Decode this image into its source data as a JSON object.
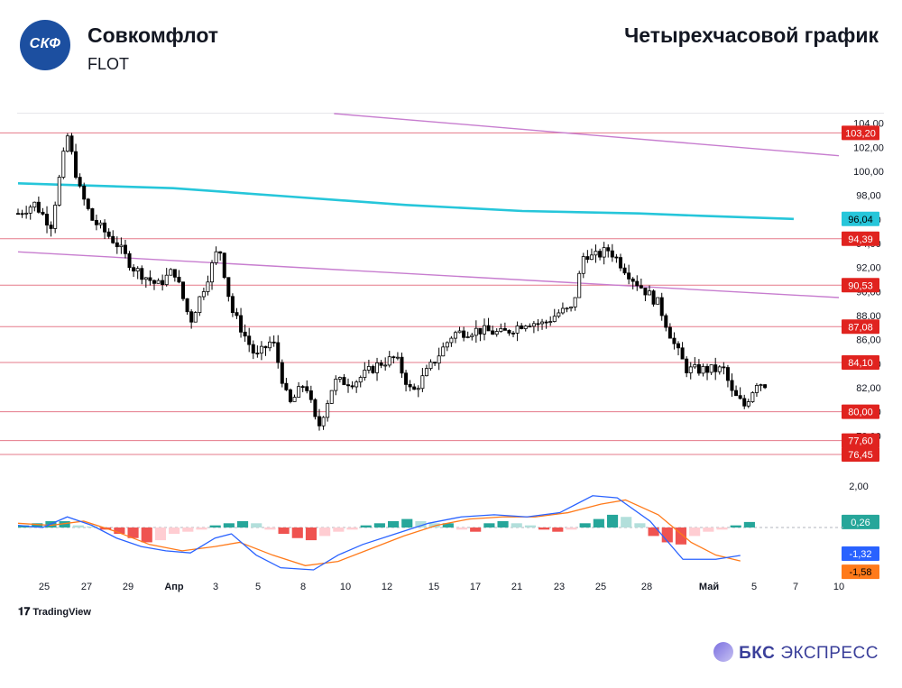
{
  "header": {
    "company_name": "Совкомфлот",
    "ticker": "FLOT",
    "logo_text": "СКФ",
    "chart_title": "Четырехчасовой график"
  },
  "footer": {
    "tradingview_label": "TradingView",
    "brand_name": "БКС",
    "brand_suffix": "ЭКСПРЕСС"
  },
  "colors": {
    "up": "#000000",
    "down": "#000000",
    "level_line": "#e57a8a",
    "level_label_bg": "#e0231f",
    "ma_line": "#26c6da",
    "trend_line": "#c77dcf",
    "macd_line": "#2962ff",
    "signal_line": "#ff7a1a",
    "hist_pos_strong": "#26a69a",
    "hist_pos_weak": "#b2dfdb",
    "hist_neg_strong": "#ef5350",
    "hist_neg_weak": "#ffcdd2"
  },
  "chart_data": {
    "type": "candlestick",
    "title": "Четырехчасовой график",
    "price_axis": {
      "min": 74.5,
      "max": 104.8,
      "ticks": [
        "104,00",
        "102,00",
        "100,00",
        "98,00",
        "96,00",
        "94,00",
        "92,00",
        "90,00",
        "88,00",
        "86,00",
        "84,00",
        "82,00",
        "80,00",
        "78,00"
      ]
    },
    "x_axis_labels": [
      "25",
      "27",
      "29",
      "Апр",
      "3",
      "5",
      "8",
      "10",
      "12",
      "15",
      "17",
      "21",
      "23",
      "25",
      "28",
      "Май",
      "5",
      "7",
      "10"
    ],
    "levels": [
      {
        "value": 103.2,
        "label": "103,20"
      },
      {
        "value": 94.39,
        "label": "94,39"
      },
      {
        "value": 90.53,
        "label": "90,53"
      },
      {
        "value": 87.08,
        "label": "87,08"
      },
      {
        "value": 84.1,
        "label": "84,10"
      },
      {
        "value": 80.0,
        "label": "80,00"
      },
      {
        "value": 77.6,
        "label": "77,60"
      },
      {
        "value": 76.45,
        "label": "76,45"
      }
    ],
    "moving_average": {
      "current_label": "96,04",
      "points": [
        [
          0,
          99.0
        ],
        [
          0.05,
          98.9
        ],
        [
          0.2,
          98.6
        ],
        [
          0.35,
          97.9
        ],
        [
          0.5,
          97.2
        ],
        [
          0.65,
          96.7
        ],
        [
          0.8,
          96.5
        ],
        [
          0.88,
          96.3
        ],
        [
          1.0,
          96.04
        ]
      ]
    },
    "trend_lines": [
      {
        "from": [
          0.385,
          104.8
        ],
        "to": [
          1.0,
          101.3
        ]
      },
      {
        "from": [
          0.0,
          93.3
        ],
        "to": [
          1.0,
          89.5
        ]
      }
    ],
    "anchors": [
      [
        0,
        96.5
      ],
      [
        0.02,
        97.3
      ],
      [
        0.04,
        95.5
      ],
      [
        0.06,
        103.0
      ],
      [
        0.075,
        98.5
      ],
      [
        0.09,
        96.0
      ],
      [
        0.12,
        94.0
      ],
      [
        0.14,
        92.0
      ],
      [
        0.17,
        90.5
      ],
      [
        0.19,
        91.8
      ],
      [
        0.21,
        87.5
      ],
      [
        0.23,
        91.0
      ],
      [
        0.245,
        93.8
      ],
      [
        0.26,
        88.5
      ],
      [
        0.29,
        84.5
      ],
      [
        0.31,
        86.0
      ],
      [
        0.33,
        80.5
      ],
      [
        0.35,
        82.5
      ],
      [
        0.365,
        78.5
      ],
      [
        0.385,
        82.5
      ],
      [
        0.41,
        82.5
      ],
      [
        0.44,
        84.0
      ],
      [
        0.46,
        84.5
      ],
      [
        0.48,
        81.5
      ],
      [
        0.5,
        83.5
      ],
      [
        0.53,
        86.5
      ],
      [
        0.56,
        86.8
      ],
      [
        0.59,
        86.5
      ],
      [
        0.62,
        87.5
      ],
      [
        0.64,
        87.3
      ],
      [
        0.66,
        88.3
      ],
      [
        0.675,
        88.5
      ],
      [
        0.69,
        93.3
      ],
      [
        0.7,
        92.8
      ],
      [
        0.72,
        93.5
      ],
      [
        0.75,
        91.0
      ],
      [
        0.78,
        89.0
      ],
      [
        0.8,
        85.5
      ],
      [
        0.815,
        83.5
      ],
      [
        0.83,
        83.5
      ],
      [
        0.845,
        83.5
      ],
      [
        0.86,
        83.5
      ],
      [
        0.87,
        81.5
      ],
      [
        0.885,
        80.5
      ],
      [
        0.9,
        82.5
      ],
      [
        0.91,
        82.3
      ]
    ],
    "macd": {
      "range": [
        -2.0,
        2.0
      ],
      "tick_label": "2,00",
      "histogram_label": "0,26",
      "macd_label": "-1,32",
      "signal_label": "-1,58",
      "macd_points": [
        [
          0,
          0.1
        ],
        [
          0.03,
          0.0
        ],
        [
          0.06,
          0.5
        ],
        [
          0.09,
          0.1
        ],
        [
          0.12,
          -0.5
        ],
        [
          0.15,
          -0.9
        ],
        [
          0.18,
          -1.1
        ],
        [
          0.21,
          -1.2
        ],
        [
          0.24,
          -0.5
        ],
        [
          0.26,
          -0.3
        ],
        [
          0.29,
          -1.3
        ],
        [
          0.32,
          -1.9
        ],
        [
          0.36,
          -2.0
        ],
        [
          0.39,
          -1.3
        ],
        [
          0.42,
          -0.8
        ],
        [
          0.46,
          -0.3
        ],
        [
          0.5,
          0.2
        ],
        [
          0.54,
          0.5
        ],
        [
          0.58,
          0.6
        ],
        [
          0.62,
          0.5
        ],
        [
          0.66,
          0.7
        ],
        [
          0.7,
          1.5
        ],
        [
          0.73,
          1.4
        ],
        [
          0.77,
          0.3
        ],
        [
          0.81,
          -1.5
        ],
        [
          0.85,
          -1.5
        ],
        [
          0.88,
          -1.32
        ]
      ],
      "signal_points": [
        [
          0,
          0.2
        ],
        [
          0.04,
          0.1
        ],
        [
          0.08,
          0.3
        ],
        [
          0.12,
          -0.2
        ],
        [
          0.16,
          -0.8
        ],
        [
          0.2,
          -1.1
        ],
        [
          0.24,
          -0.9
        ],
        [
          0.27,
          -0.7
        ],
        [
          0.31,
          -1.3
        ],
        [
          0.35,
          -1.8
        ],
        [
          0.39,
          -1.6
        ],
        [
          0.43,
          -1.0
        ],
        [
          0.47,
          -0.4
        ],
        [
          0.51,
          0.1
        ],
        [
          0.55,
          0.4
        ],
        [
          0.59,
          0.5
        ],
        [
          0.63,
          0.5
        ],
        [
          0.67,
          0.7
        ],
        [
          0.71,
          1.1
        ],
        [
          0.74,
          1.3
        ],
        [
          0.78,
          0.6
        ],
        [
          0.82,
          -0.7
        ],
        [
          0.85,
          -1.3
        ],
        [
          0.88,
          -1.58
        ]
      ],
      "histogram": [
        0.1,
        0.2,
        0.3,
        0.3,
        0.1,
        0.05,
        -0.1,
        -0.3,
        -0.5,
        -0.7,
        -0.6,
        -0.3,
        -0.2,
        -0.1,
        0.1,
        0.2,
        0.3,
        0.2,
        -0.1,
        -0.3,
        -0.5,
        -0.6,
        -0.4,
        -0.2,
        -0.1,
        0.1,
        0.2,
        0.3,
        0.4,
        0.3,
        0.2,
        0.2,
        -0.1,
        -0.2,
        0.2,
        0.3,
        0.2,
        0.1,
        -0.1,
        -0.2,
        -0.1,
        0.2,
        0.4,
        0.6,
        0.5,
        0.2,
        -0.4,
        -0.7,
        -0.8,
        -0.4,
        -0.2,
        -0.1,
        0.1,
        0.26
      ]
    }
  }
}
